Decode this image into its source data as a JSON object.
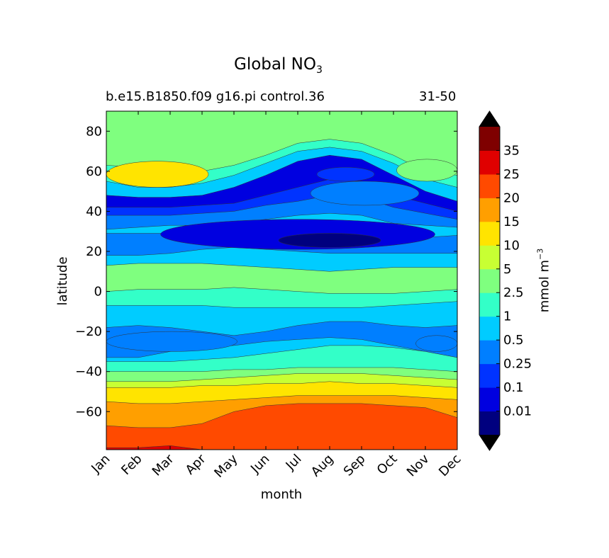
{
  "chart_data": {
    "type": "heatmap",
    "title": "Global NO",
    "title_subscript": "3",
    "subtitle_left": "b.e15.B1850.f09 g16.pi control.36",
    "subtitle_right": "31-50",
    "xlabel": "month",
    "ylabel": "latitude",
    "x_categories": [
      "Jan",
      "Feb",
      "Mar",
      "Apr",
      "May",
      "Jun",
      "Jul",
      "Aug",
      "Sep",
      "Oct",
      "Nov",
      "Dec"
    ],
    "y_ticks": [
      80,
      60,
      40,
      20,
      0,
      -20,
      -40,
      -60
    ],
    "ylim": [
      -79,
      90
    ],
    "colorbar": {
      "label": "mmol m",
      "label_superscript": "−3",
      "tick_labels": [
        "35",
        "25",
        "20",
        "15",
        "10",
        "5",
        "2.5",
        "1",
        "0.5",
        "0.25",
        "0.1",
        "0.01"
      ],
      "extend": "both",
      "level_colors_low_to_high": [
        "#00007f",
        "#0000e0",
        "#0033ff",
        "#007fff",
        "#00ccff",
        "#33ffc8",
        "#7fff7f",
        "#c8ff33",
        "#ffe400",
        "#ff9f00",
        "#ff4a00",
        "#e00000",
        "#7f0000"
      ],
      "under_color": "#000000",
      "over_color": "#000000"
    },
    "bands_south_to_north": [
      {
        "level": 11,
        "lat_max": [
          -78,
          -78,
          -77,
          -79,
          -79,
          -79,
          -79,
          -79,
          -79,
          -79,
          -79,
          -79
        ]
      },
      {
        "level": 10,
        "lat_max": [
          -67,
          -68,
          -68,
          -66,
          -60,
          -57,
          -56,
          -56,
          -56,
          -57,
          -58,
          -63
        ]
      },
      {
        "level": 9,
        "lat_max": [
          -55,
          -56,
          -56,
          -55,
          -54,
          -53,
          -52,
          -52,
          -52,
          -52,
          -53,
          -54
        ]
      },
      {
        "level": 8,
        "lat_max": [
          -48,
          -48,
          -48,
          -47,
          -47,
          -46,
          -46,
          -45,
          -46,
          -46,
          -47,
          -48
        ]
      },
      {
        "level": 7,
        "lat_max": [
          -45,
          -45,
          -45,
          -44,
          -43,
          -42,
          -41,
          -41,
          -41,
          -42,
          -43,
          -44
        ]
      },
      {
        "level": 6,
        "lat_max": [
          -40,
          -40,
          -40,
          -40,
          -39,
          -39,
          -38,
          -38,
          -38,
          -38,
          -39,
          -40
        ]
      },
      {
        "level": 5,
        "lat_max": [
          -35,
          -35,
          -35,
          -34,
          -33,
          -31,
          -29,
          -27,
          -27,
          -28,
          -30,
          -33
        ]
      },
      {
        "level": 4,
        "lat_max": [
          -33,
          -33,
          -30,
          -28,
          -27,
          -25,
          -24,
          -23,
          -24,
          -27,
          -30,
          -33
        ]
      },
      {
        "level": 3,
        "lat_max": [
          -18,
          -17,
          -18,
          -20,
          -22,
          -20,
          -17,
          -15,
          -15,
          -17,
          -18,
          -17
        ]
      },
      {
        "level": 4,
        "lat_max": [
          -7,
          -7,
          -7,
          -7,
          -8,
          -8,
          -8,
          -8,
          -8,
          -7,
          -6,
          -5
        ]
      },
      {
        "level": 5,
        "lat_max": [
          0,
          1,
          1,
          1,
          2,
          1,
          0,
          -1,
          -1,
          -1,
          0,
          1
        ]
      },
      {
        "level": 6,
        "lat_max": [
          13,
          14,
          14,
          14,
          13,
          12,
          11,
          10,
          11,
          12,
          12,
          12
        ]
      },
      {
        "level": 4,
        "lat_max": [
          18,
          18,
          19,
          21,
          22,
          21,
          20,
          19,
          19,
          19,
          19,
          19
        ]
      },
      {
        "level": 3,
        "lat_max": [
          29,
          29,
          29,
          28,
          28,
          27,
          26,
          24,
          24,
          26,
          27,
          28
        ]
      },
      {
        "level": 4,
        "lat_max": [
          31,
          32,
          33,
          33,
          34,
          36,
          38,
          39,
          38,
          34,
          33,
          32
        ]
      },
      {
        "level": 3,
        "lat_max": [
          38,
          38,
          38,
          39,
          40,
          43,
          45,
          48,
          47,
          42,
          39,
          36
        ]
      },
      {
        "level": 2,
        "lat_max": [
          42,
          42,
          42,
          43,
          44,
          48,
          52,
          56,
          55,
          48,
          44,
          40
        ]
      },
      {
        "level": 1,
        "lat_max": [
          48,
          47,
          47,
          48,
          52,
          58,
          65,
          68,
          66,
          58,
          50,
          45
        ]
      },
      {
        "level": 4,
        "lat_max": [
          55,
          52,
          52,
          54,
          58,
          64,
          70,
          72,
          70,
          64,
          56,
          52
        ]
      },
      {
        "level": 5,
        "lat_max": [
          63,
          62,
          60,
          60,
          63,
          68,
          74,
          76,
          74,
          68,
          60,
          58
        ]
      },
      {
        "level": 6,
        "lat_max": [
          90,
          90,
          90,
          90,
          90,
          90,
          90,
          90,
          90,
          90,
          90,
          90
        ]
      }
    ],
    "patches": [
      {
        "level": 3,
        "lat": [
          43,
          55
        ],
        "month": [
          6.4,
          9.8
        ]
      },
      {
        "level": 2,
        "lat": [
          55,
          62
        ],
        "month": [
          6.6,
          8.4
        ]
      },
      {
        "level": 1,
        "lat": [
          21,
          36
        ],
        "month": [
          1.7,
          10.3
        ]
      },
      {
        "level": 0,
        "lat": [
          22,
          29
        ],
        "month": [
          5.4,
          8.6
        ]
      },
      {
        "level": 8,
        "lat": [
          52,
          65
        ],
        "month": [
          0,
          3.2
        ]
      },
      {
        "level": 3,
        "lat": [
          -30,
          -20
        ],
        "month": [
          0,
          4.1
        ]
      },
      {
        "level": 3,
        "lat": [
          -30,
          -22
        ],
        "month": [
          9.7,
          11
        ]
      },
      {
        "level": 6,
        "lat": [
          55,
          66
        ],
        "month": [
          9.1,
          11
        ]
      }
    ]
  }
}
